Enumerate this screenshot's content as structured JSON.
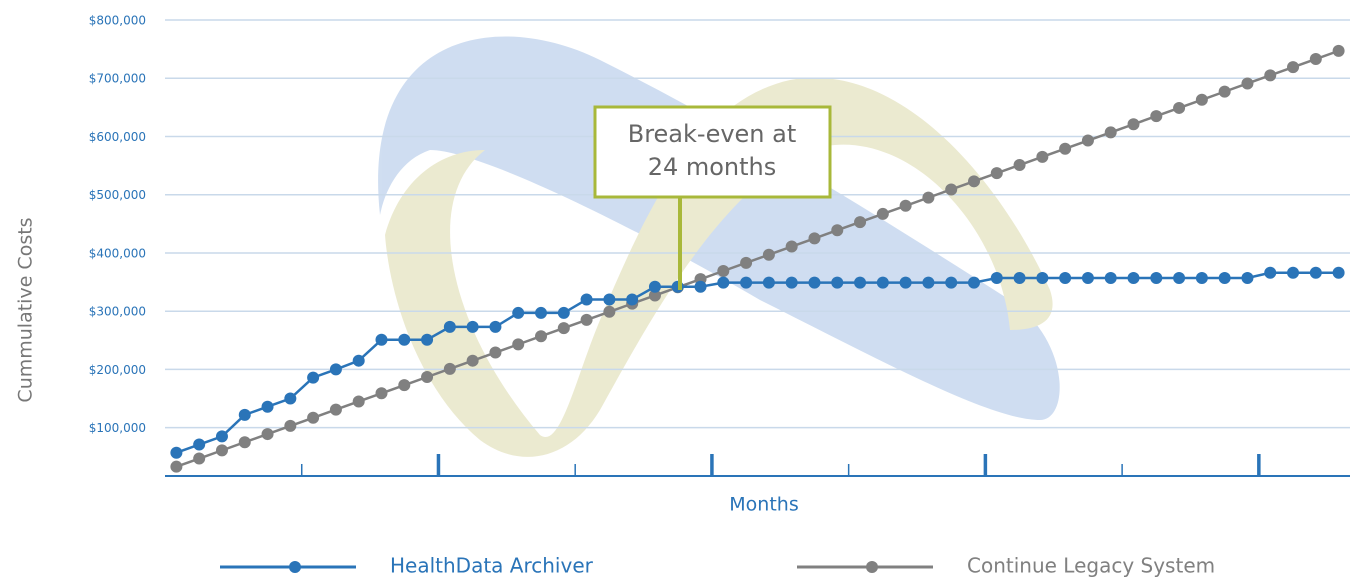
{
  "chart_data": {
    "type": "line",
    "ylabel": "Cummulative Costs",
    "xlabel": "Months",
    "annotation": [
      "Break-even at",
      "24 months"
    ],
    "x": [
      1,
      2,
      3,
      4,
      5,
      6,
      7,
      8,
      9,
      10,
      11,
      12,
      13,
      14,
      15,
      16,
      17,
      18,
      19,
      20,
      21,
      22,
      23,
      24,
      25,
      26,
      27,
      28,
      29,
      30,
      31,
      32,
      33,
      34,
      35,
      36,
      37,
      38,
      39,
      40,
      41,
      42,
      43,
      44,
      45,
      46,
      47,
      48,
      49,
      50,
      51,
      52
    ],
    "xlim": [
      0.5,
      52.5
    ],
    "xticks_minor": [
      6.5,
      18.5,
      30.5,
      42.5
    ],
    "xticks_major": [
      12.5,
      24.5,
      36.5,
      48.5
    ],
    "ylim": [
      17000,
      800000
    ],
    "yticks": [
      {
        "value": 100000,
        "label": "$100,000"
      },
      {
        "value": 200000,
        "label": "$200,000"
      },
      {
        "value": 300000,
        "label": "$300,000"
      },
      {
        "value": 400000,
        "label": "$400,000"
      },
      {
        "value": 500000,
        "label": "$500,000"
      },
      {
        "value": 600000,
        "label": "$600,000"
      },
      {
        "value": 700000,
        "label": "$700,000"
      },
      {
        "value": 800000,
        "label": "$800,000"
      }
    ],
    "grid": true,
    "series": [
      {
        "name": "HealthData Archiver",
        "color": "#2a74b8",
        "values": [
          57000,
          71000,
          85000,
          122000,
          136000,
          150000,
          186000,
          200000,
          215000,
          251000,
          251000,
          251000,
          273000,
          273000,
          273000,
          297000,
          297000,
          297000,
          320000,
          320000,
          320000,
          342000,
          342000,
          342000,
          349000,
          349000,
          349000,
          349000,
          349000,
          349000,
          349000,
          349000,
          349000,
          349000,
          349000,
          349000,
          357000,
          357000,
          357000,
          357000,
          357000,
          357000,
          357000,
          357000,
          357000,
          357000,
          357000,
          357000,
          366000,
          366000,
          366000,
          366000
        ]
      },
      {
        "name": "Continue Legacy System",
        "color": "#808080",
        "values": [
          33000,
          47000,
          61000,
          75000,
          89000,
          103000,
          117000,
          131000,
          145000,
          159000,
          173000,
          187000,
          201000,
          215000,
          229000,
          243000,
          257000,
          271000,
          285000,
          299000,
          313000,
          327000,
          341000,
          355000,
          369000,
          383000,
          397000,
          411000,
          425000,
          439000,
          453000,
          467000,
          481000,
          495000,
          509000,
          523000,
          537000,
          551000,
          565000,
          579000,
          593000,
          607000,
          621000,
          635000,
          649000,
          663000,
          677000,
          691000,
          705000,
          719000,
          733000,
          747000
        ]
      }
    ]
  }
}
